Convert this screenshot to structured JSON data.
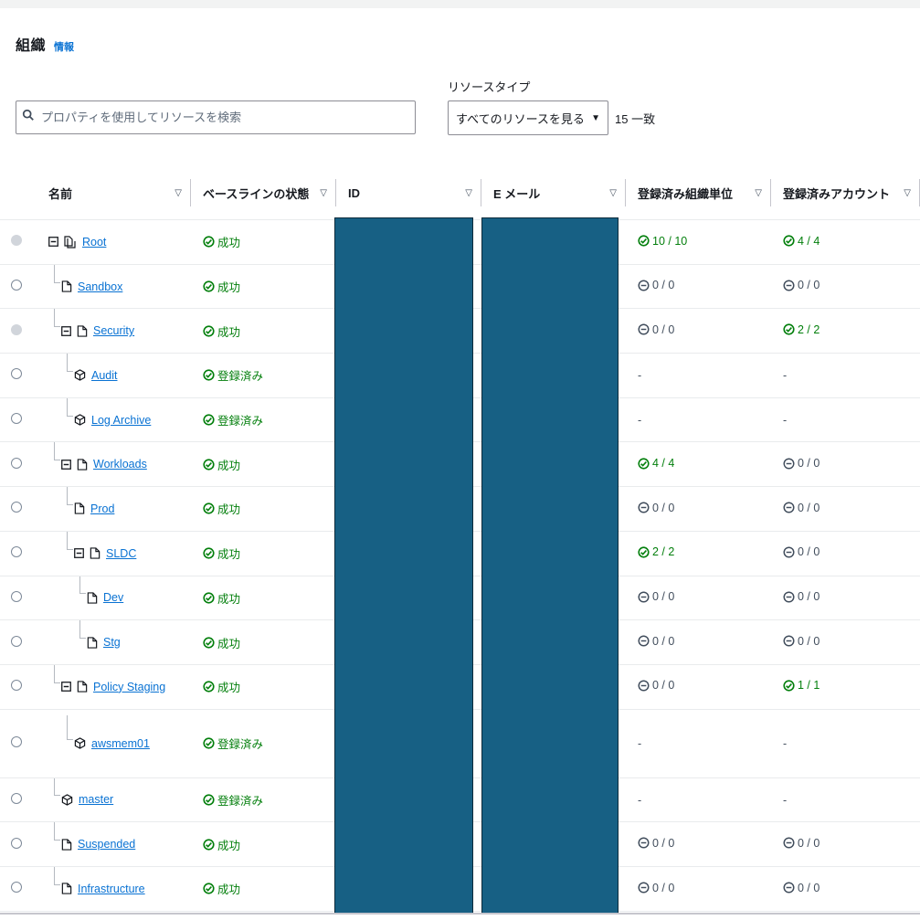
{
  "header": {
    "title": "組織",
    "info_link": "情報"
  },
  "search": {
    "placeholder": "プロパティを使用してリソースを検索",
    "value": ""
  },
  "resource_type": {
    "label": "リソースタイプ",
    "selected": "すべてのリソースを見る"
  },
  "match_count": "15 一致",
  "columns": {
    "name": "名前",
    "baseline": "ベースラインの状態",
    "id": "ID",
    "email": "E メール",
    "registered_ous": "登録済み組織単位",
    "registered_accounts": "登録済みアカウント"
  },
  "colors": {
    "link": "#0972d3",
    "success": "#037f0c",
    "redaction": "#176084"
  },
  "rows": [
    {
      "name": "Root",
      "type": "ou",
      "baseline": "成功",
      "ous": "10 / 10",
      "ous_status": "ok",
      "accounts": "4 / 4",
      "accounts_status": "ok",
      "radio_disabled": true
    },
    {
      "name": "Sandbox",
      "type": "ou",
      "baseline": "成功",
      "ous": "0 / 0",
      "ous_status": "none",
      "accounts": "0 / 0",
      "accounts_status": "none",
      "radio_disabled": false
    },
    {
      "name": "Security",
      "type": "ou",
      "baseline": "成功",
      "ous": "0 / 0",
      "ous_status": "none",
      "accounts": "2 / 2",
      "accounts_status": "ok",
      "radio_disabled": true
    },
    {
      "name": "Audit",
      "type": "account",
      "baseline": "登録済み",
      "ous": "-",
      "ous_status": "dash",
      "accounts": "-",
      "accounts_status": "dash",
      "radio_disabled": false
    },
    {
      "name": "Log Archive",
      "type": "account",
      "baseline": "登録済み",
      "ous": "-",
      "ous_status": "dash",
      "accounts": "-",
      "accounts_status": "dash",
      "radio_disabled": false
    },
    {
      "name": "Workloads",
      "type": "ou",
      "baseline": "成功",
      "ous": "4 / 4",
      "ous_status": "ok",
      "accounts": "0 / 0",
      "accounts_status": "none",
      "radio_disabled": false
    },
    {
      "name": "Prod",
      "type": "ou",
      "baseline": "成功",
      "ous": "0 / 0",
      "ous_status": "none",
      "accounts": "0 / 0",
      "accounts_status": "none",
      "radio_disabled": false
    },
    {
      "name": "SLDC",
      "type": "ou",
      "baseline": "成功",
      "ous": "2 / 2",
      "ous_status": "ok",
      "accounts": "0 / 0",
      "accounts_status": "none",
      "radio_disabled": false
    },
    {
      "name": "Dev",
      "type": "ou",
      "baseline": "成功",
      "ous": "0 / 0",
      "ous_status": "none",
      "accounts": "0 / 0",
      "accounts_status": "none",
      "radio_disabled": false
    },
    {
      "name": "Stg",
      "type": "ou",
      "baseline": "成功",
      "ous": "0 / 0",
      "ous_status": "none",
      "accounts": "0 / 0",
      "accounts_status": "none",
      "radio_disabled": false
    },
    {
      "name": "Policy Staging",
      "type": "ou",
      "baseline": "成功",
      "ous": "0 / 0",
      "ous_status": "none",
      "accounts": "1 / 1",
      "accounts_status": "ok",
      "radio_disabled": false
    },
    {
      "name": "awsmem01",
      "type": "account",
      "baseline": "登録済み",
      "ous": "-",
      "ous_status": "dash",
      "accounts": "-",
      "accounts_status": "dash",
      "radio_disabled": false
    },
    {
      "name": "master",
      "type": "account",
      "baseline": "登録済み",
      "ous": "-",
      "ous_status": "dash",
      "accounts": "-",
      "accounts_status": "dash",
      "radio_disabled": false
    },
    {
      "name": "Suspended",
      "type": "ou",
      "baseline": "成功",
      "ous": "0 / 0",
      "ous_status": "none",
      "accounts": "0 / 0",
      "accounts_status": "none",
      "radio_disabled": false
    },
    {
      "name": "Infrastructure",
      "type": "ou",
      "baseline": "成功",
      "ous": "0 / 0",
      "ous_status": "none",
      "accounts": "0 / 0",
      "accounts_status": "none",
      "radio_disabled": false
    }
  ]
}
